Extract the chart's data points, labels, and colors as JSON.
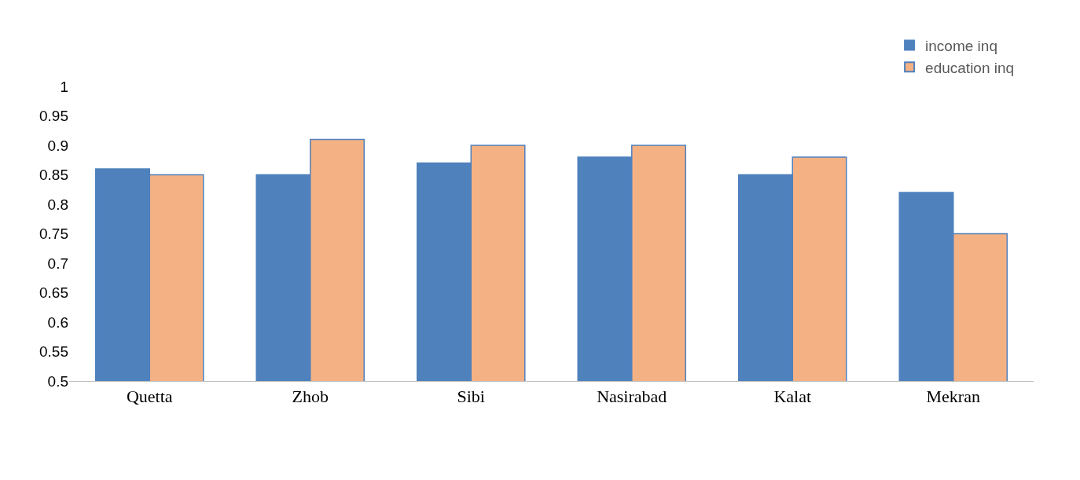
{
  "chart_data": {
    "type": "bar",
    "categories": [
      "Quetta",
      "Zhob",
      "Sibi",
      "Nasirabad",
      "Kalat",
      "Mekran"
    ],
    "series": [
      {
        "name": "income inq",
        "color": "#4f81bd",
        "values": [
          0.86,
          0.85,
          0.87,
          0.88,
          0.85,
          0.82
        ]
      },
      {
        "name": "education inq",
        "color": "#f4b183",
        "values": [
          0.85,
          0.91,
          0.9,
          0.9,
          0.88,
          0.75
        ]
      }
    ],
    "ylim": [
      0.5,
      1
    ],
    "yticks": [
      {
        "value": 0.5,
        "label": "0.5"
      },
      {
        "value": 0.55,
        "label": "0.55"
      },
      {
        "value": 0.6,
        "label": "0.6"
      },
      {
        "value": 0.65,
        "label": "0.65"
      },
      {
        "value": 0.7,
        "label": "0.7"
      },
      {
        "value": 0.75,
        "label": "0.75"
      },
      {
        "value": 0.8,
        "label": "0.8"
      },
      {
        "value": 0.85,
        "label": "0.85"
      },
      {
        "value": 0.9,
        "label": "0.9"
      },
      {
        "value": 0.95,
        "label": "0.95"
      },
      {
        "value": 1,
        "label": "1"
      }
    ],
    "legend": "top right"
  }
}
